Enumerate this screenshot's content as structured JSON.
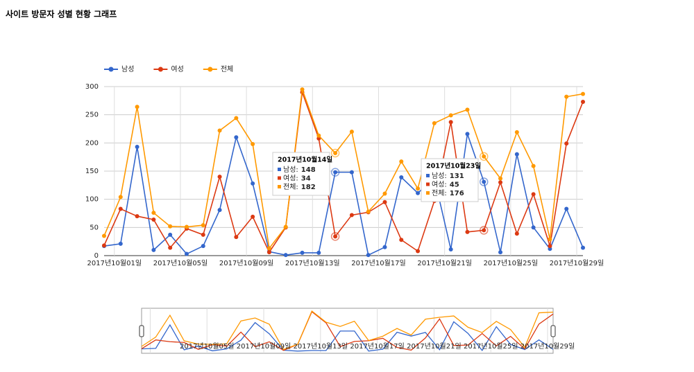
{
  "chart_data": {
    "type": "line",
    "title": "사이트 방문자 성별 현황 그래프",
    "categories": [
      null,
      "2017년10월01일",
      null,
      null,
      null,
      "2017년10월05일",
      null,
      null,
      null,
      "2017년10월09일",
      null,
      null,
      null,
      "2017년10월13일",
      null,
      null,
      null,
      "2017년10월17일",
      null,
      null,
      null,
      "2017년10월21일",
      null,
      null,
      null,
      "2017년10월25일",
      null,
      null,
      null,
      "2017년10월29일"
    ],
    "series": [
      {
        "name": "남성",
        "color": "#3366cc",
        "values": [
          17,
          21,
          193,
          10,
          37,
          3,
          17,
          81,
          210,
          128,
          7,
          1,
          5,
          5,
          148,
          148,
          1,
          15,
          139,
          111,
          138,
          11,
          216,
          131,
          6,
          180,
          50,
          12,
          83,
          14
        ]
      },
      {
        "name": "여성",
        "color": "#dc3912",
        "values": [
          18,
          83,
          70,
          64,
          14,
          48,
          37,
          140,
          33,
          69,
          6,
          50,
          290,
          208,
          34,
          72,
          77,
          95,
          28,
          8,
          97,
          237,
          42,
          45,
          130,
          39,
          109,
          17,
          199,
          273
        ]
      },
      {
        "name": "전체",
        "color": "#ff9900",
        "values": [
          35,
          104,
          264,
          76,
          52,
          51,
          54,
          222,
          244,
          198,
          13,
          51,
          295,
          213,
          182,
          220,
          78,
          110,
          167,
          119,
          235,
          249,
          259,
          176,
          137,
          219,
          159,
          29,
          282,
          287
        ]
      }
    ],
    "ylim": [
      0,
      300
    ],
    "yticks": [
      0,
      50,
      100,
      150,
      200,
      250,
      300
    ],
    "grid": true,
    "legend": "top",
    "tooltips": [
      {
        "title": "2017년10월14일",
        "labels": [
          "남성:",
          "여성:",
          "전체:"
        ],
        "values": [
          148,
          34,
          182
        ]
      },
      {
        "title": "2017년10월23일",
        "labels": [
          "남성:",
          "여성:",
          "전체:"
        ],
        "values": [
          131,
          45,
          176
        ]
      }
    ]
  }
}
